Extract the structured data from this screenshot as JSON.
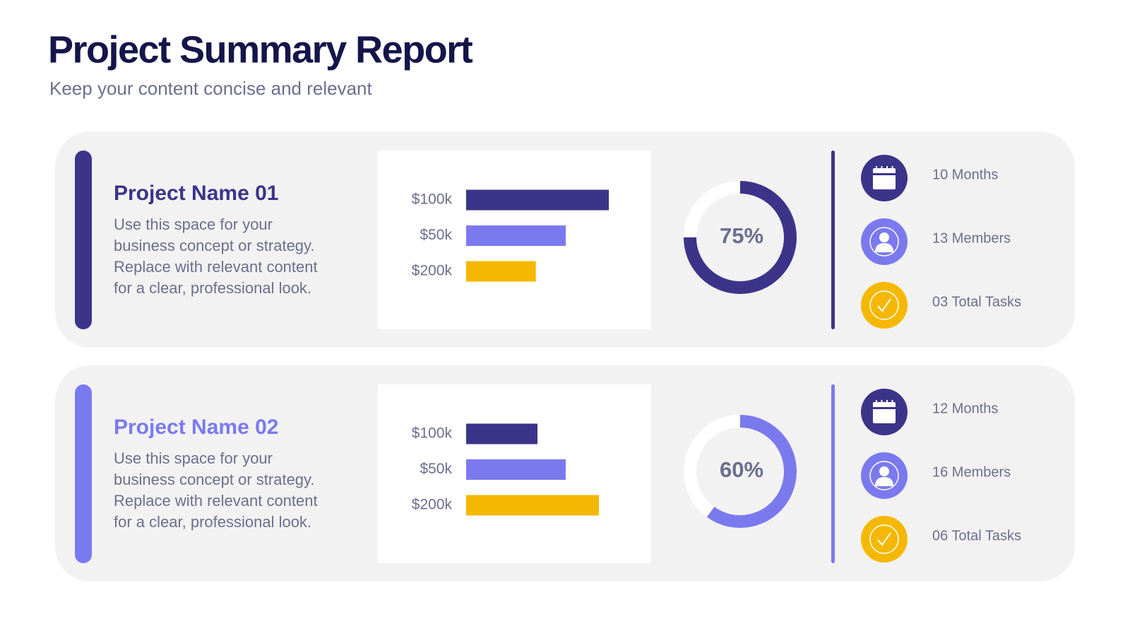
{
  "header": {
    "title": "Project Summary Report",
    "subtitle": "Keep your content concise and relevant"
  },
  "projects": [
    {
      "name": "Project Name 01",
      "color": "#3c3489",
      "description": [
        "Use this space for your",
        "business concept or strategy.",
        "Replace with relevant content",
        "for a clear, professional look."
      ],
      "stats": [
        "10 Months",
        "13 Members",
        "03 Total Tasks"
      ]
    },
    {
      "name": "Project Name 02",
      "color": "#7a7aee",
      "description": [
        "Use this space for your",
        "business concept or strategy.",
        "Replace with relevant content",
        "for a clear, professional look."
      ],
      "stats": [
        "12 Months",
        "16 Members",
        "06 Total Tasks"
      ]
    }
  ],
  "chart_data": [
    {
      "type": "bar",
      "orientation": "horizontal",
      "categories": [
        "$100k",
        "$50k",
        "$200k"
      ],
      "values": [
        86,
        60,
        42
      ],
      "colors": [
        "#3c3489",
        "#7a7aee",
        "#f5b800"
      ],
      "xlim": [
        0,
        100
      ]
    },
    {
      "type": "donut",
      "values": [
        75
      ],
      "value_labels": [
        "75%"
      ],
      "color": "#3c3489",
      "track_color": "#ffffff"
    },
    {
      "type": "bar",
      "orientation": "horizontal",
      "categories": [
        "$100k",
        "$50k",
        "$200k"
      ],
      "values": [
        43,
        60,
        80
      ],
      "colors": [
        "#3c3489",
        "#7a7aee",
        "#f5b800"
      ],
      "xlim": [
        0,
        100
      ]
    },
    {
      "type": "donut",
      "values": [
        60
      ],
      "value_labels": [
        "60%"
      ],
      "color": "#7a7aee",
      "track_color": "#ffffff"
    }
  ]
}
